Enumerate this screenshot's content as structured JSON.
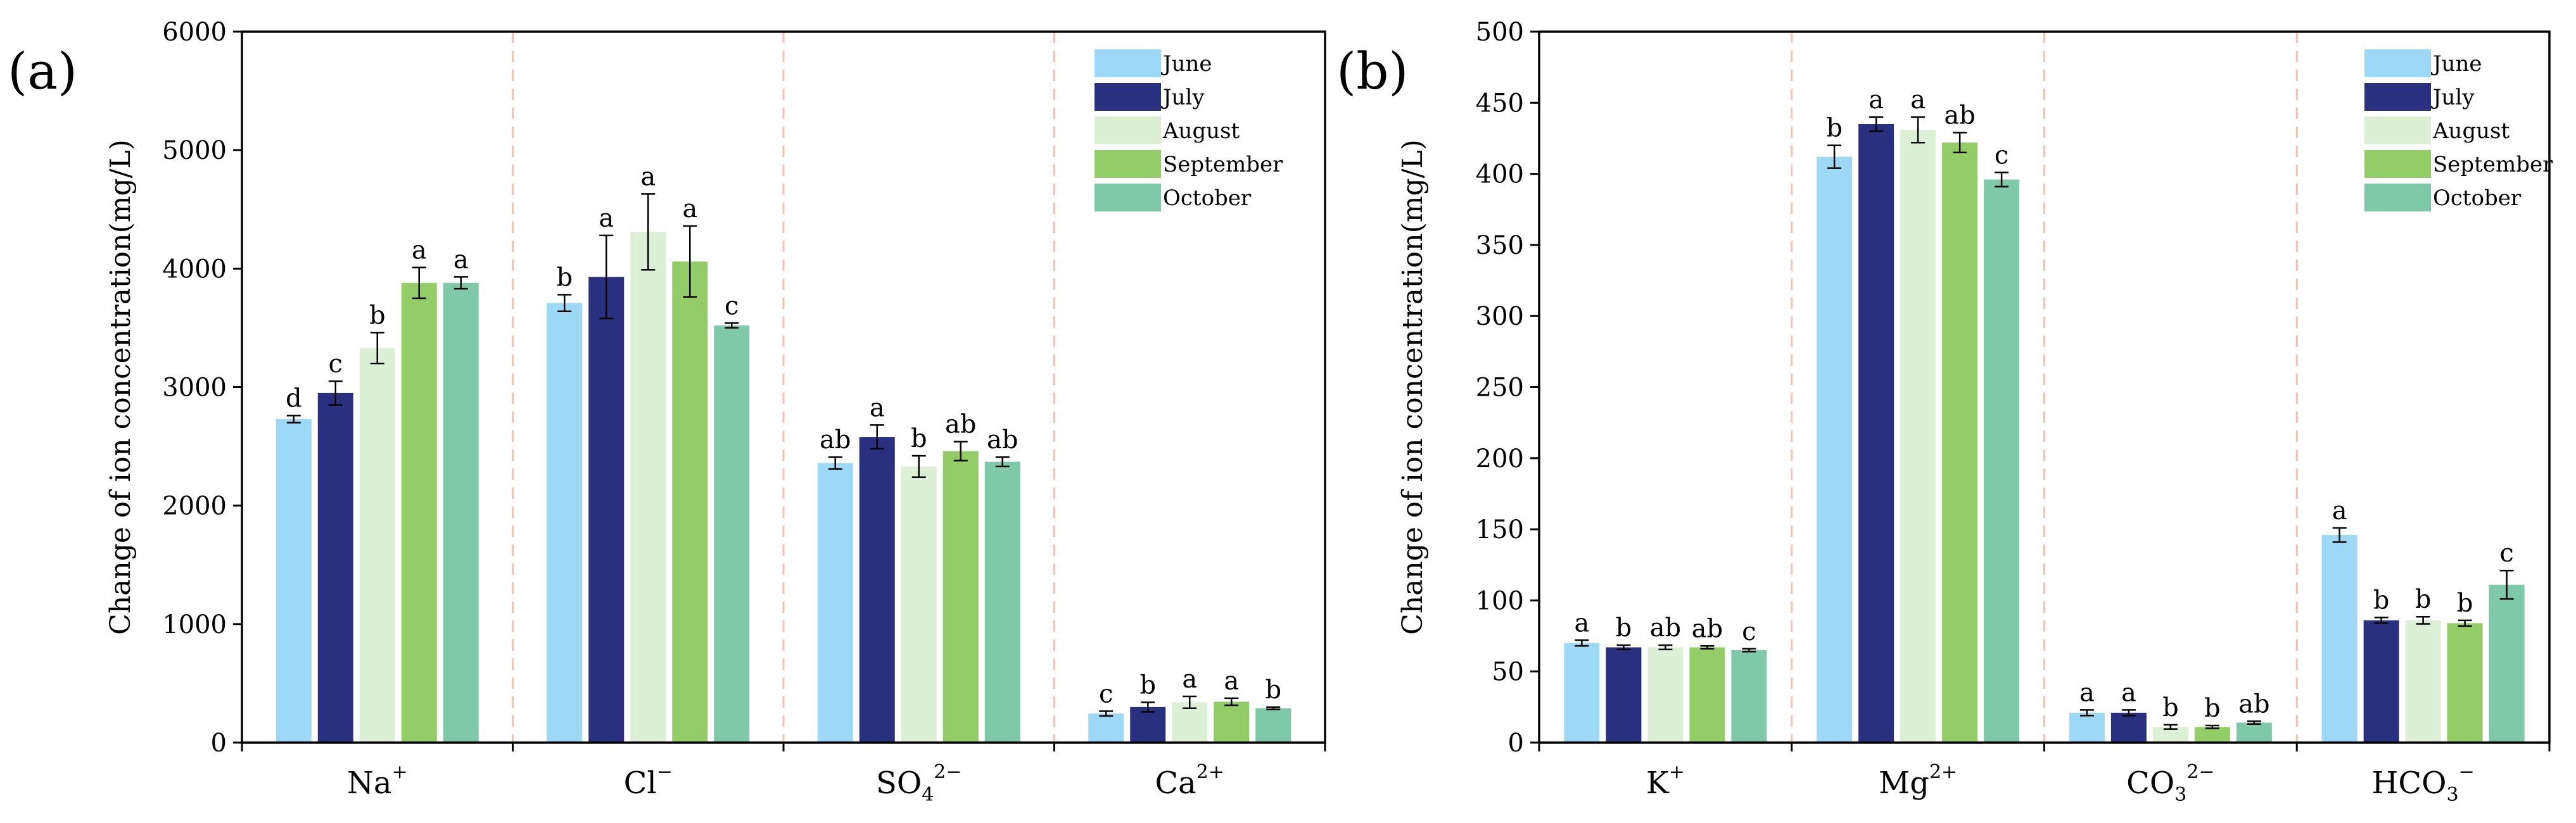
{
  "chart_data": [
    {
      "type": "bar",
      "panel_label": "(a)",
      "ylabel": "Change of ion concentration(mg/L)",
      "ylim": [
        0,
        6000
      ],
      "yticks": [
        "0",
        "1000",
        "2000",
        "3000",
        "4000",
        "5000",
        "6000"
      ],
      "ytick_values": [
        0,
        1000,
        2000,
        3000,
        4000,
        5000,
        6000
      ],
      "categories": [
        {
          "base": "Na",
          "sub": "",
          "sup": "+"
        },
        {
          "base": "Cl",
          "sub": "",
          "sup": "−"
        },
        {
          "base": "SO",
          "sub": "4",
          "sup": "2−"
        },
        {
          "base": "Ca",
          "sub": "",
          "sup": "2+"
        }
      ],
      "series": [
        {
          "name": "June",
          "color": "#9ed8f7",
          "values": [
            2730,
            3710,
            2360,
            245
          ],
          "errors": [
            30,
            70,
            50,
            20
          ],
          "letters": [
            "d",
            "b",
            "ab",
            "c"
          ]
        },
        {
          "name": "July",
          "color": "#2b2f80",
          "values": [
            2950,
            3930,
            2580,
            300
          ],
          "errors": [
            100,
            350,
            100,
            40
          ],
          "letters": [
            "c",
            "a",
            "a",
            "b"
          ]
        },
        {
          "name": "August",
          "color": "#deefd8",
          "values": [
            3330,
            4310,
            2330,
            340
          ],
          "errors": [
            130,
            320,
            90,
            50
          ],
          "letters": [
            "b",
            "a",
            "b",
            "a"
          ]
        },
        {
          "name": "September",
          "color": "#94cd67",
          "values": [
            3880,
            4060,
            2460,
            345
          ],
          "errors": [
            130,
            300,
            80,
            30
          ],
          "letters": [
            "a",
            "a",
            "ab",
            "a"
          ]
        },
        {
          "name": "October",
          "color": "#7fc8a9",
          "values": [
            3880,
            3520,
            2370,
            290
          ],
          "errors": [
            50,
            20,
            40,
            10
          ],
          "letters": [
            "a",
            "c",
            "ab",
            "b"
          ]
        }
      ],
      "legend": "top-right",
      "grid": false
    },
    {
      "type": "bar",
      "panel_label": "(b)",
      "ylabel": "Change of ion concentration(mg/L)",
      "ylim": [
        0,
        500
      ],
      "yticks": [
        "0",
        "50",
        "100",
        "150",
        "200",
        "250",
        "300",
        "350",
        "400",
        "450",
        "500"
      ],
      "ytick_values": [
        0,
        50,
        100,
        150,
        200,
        250,
        300,
        350,
        400,
        450,
        500
      ],
      "categories": [
        {
          "base": "K",
          "sub": "",
          "sup": "+"
        },
        {
          "base": "Mg",
          "sub": "",
          "sup": "2+"
        },
        {
          "base": "CO",
          "sub": "3",
          "sup": "2−"
        },
        {
          "base": "HCO",
          "sub": "3",
          "sup": "−"
        }
      ],
      "series": [
        {
          "name": "June",
          "color": "#9ed8f7",
          "values": [
            70,
            412,
            21,
            146
          ],
          "errors": [
            2,
            8,
            2,
            5
          ],
          "letters": [
            "a",
            "b",
            "a",
            "a"
          ]
        },
        {
          "name": "July",
          "color": "#2b2f80",
          "values": [
            67,
            435,
            21,
            86
          ],
          "errors": [
            1.5,
            5,
            2,
            2
          ],
          "letters": [
            "b",
            "a",
            "a",
            "b"
          ]
        },
        {
          "name": "August",
          "color": "#deefd8",
          "values": [
            67,
            431,
            11,
            86
          ],
          "errors": [
            1.5,
            9,
            1.5,
            2.5
          ],
          "letters": [
            "ab",
            "a",
            "b",
            "b"
          ]
        },
        {
          "name": "September",
          "color": "#94cd67",
          "values": [
            67,
            422,
            11,
            84
          ],
          "errors": [
            1,
            7,
            1,
            2
          ],
          "letters": [
            "ab",
            "ab",
            "b",
            "b"
          ]
        },
        {
          "name": "October",
          "color": "#7fc8a9",
          "values": [
            65,
            396,
            14,
            111
          ],
          "errors": [
            1,
            5,
            1,
            10
          ],
          "letters": [
            "c",
            "c",
            "ab",
            "c"
          ]
        }
      ],
      "legend": "top-right",
      "grid": false
    }
  ]
}
